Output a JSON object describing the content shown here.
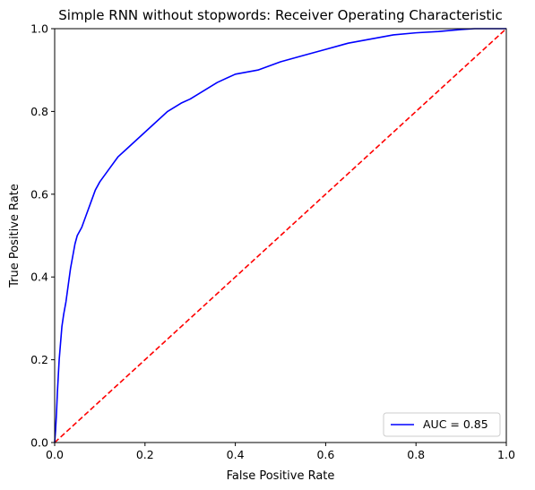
{
  "chart_data": {
    "type": "line",
    "title": "Simple RNN without stopwords: Receiver Operating Characteristic",
    "xlabel": "False Positive Rate",
    "ylabel": "True Positive Rate",
    "xlim": [
      0.0,
      1.0
    ],
    "ylim": [
      0.0,
      1.0
    ],
    "xticks": [
      "0.0",
      "0.2",
      "0.4",
      "0.6",
      "0.8",
      "1.0"
    ],
    "yticks": [
      "0.0",
      "0.2",
      "0.4",
      "0.6",
      "0.8",
      "1.0"
    ],
    "grid": false,
    "legend_position": "lower-right",
    "series": [
      {
        "name": "AUC = 0.85",
        "color": "#0000ff",
        "style": "solid",
        "x": [
          0.0,
          0.002,
          0.004,
          0.006,
          0.008,
          0.01,
          0.013,
          0.016,
          0.02,
          0.025,
          0.03,
          0.035,
          0.04,
          0.045,
          0.05,
          0.06,
          0.07,
          0.08,
          0.09,
          0.1,
          0.12,
          0.14,
          0.16,
          0.18,
          0.2,
          0.22,
          0.25,
          0.28,
          0.3,
          0.33,
          0.36,
          0.4,
          0.45,
          0.5,
          0.55,
          0.6,
          0.65,
          0.7,
          0.75,
          0.8,
          0.85,
          0.88,
          0.9,
          0.93,
          0.96,
          1.0
        ],
        "y": [
          0.0,
          0.03,
          0.07,
          0.12,
          0.16,
          0.2,
          0.24,
          0.28,
          0.31,
          0.34,
          0.38,
          0.42,
          0.45,
          0.48,
          0.5,
          0.52,
          0.55,
          0.58,
          0.61,
          0.63,
          0.66,
          0.69,
          0.71,
          0.73,
          0.75,
          0.77,
          0.8,
          0.82,
          0.83,
          0.85,
          0.87,
          0.89,
          0.9,
          0.92,
          0.935,
          0.95,
          0.965,
          0.975,
          0.985,
          0.99,
          0.993,
          0.996,
          0.998,
          1.0,
          1.0,
          1.0
        ]
      },
      {
        "name": "",
        "color": "#ff0000",
        "style": "dashed",
        "x": [
          0.0,
          1.0
        ],
        "y": [
          0.0,
          1.0
        ]
      }
    ]
  }
}
